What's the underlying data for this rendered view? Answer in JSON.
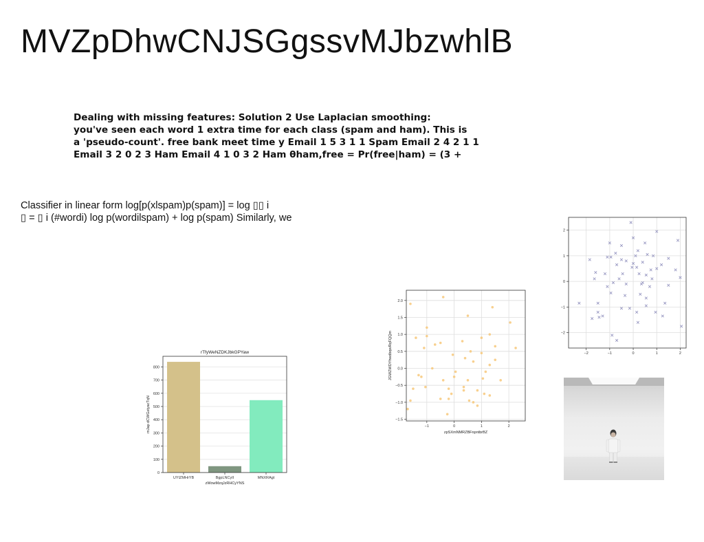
{
  "title": "MVZpDhwCNJSGgssvMJbzwhlB",
  "bold_text_lines": [
    "Dealing with missing features: Solution 2 Use Laplacian smoothing:",
    "you've seen each word 1 extra time for each class (spam and ham). This is",
    "a 'pseudo-count'. free bank meet time y Email 1 5 3 1 1 Spam Email 2 4 2 1 1",
    "Email 3 2 0 2 3 Ham Email 4 1 0 3 2 Ham θham,free = Pr(free|ham) = (3 +"
  ],
  "classifier_lines": [
    "Classifier in linear form log[p(xlspam)p(spam)] = log ▯▯ i",
    "▯ = ▯ i (#wordi) log p(wordilspam) + log p(spam) Similarly, we"
  ],
  "chart_data": [
    {
      "type": "bar",
      "title": "rTfyWeNZDKJbkGPYaw",
      "xlabel": "zWowMzqJzRHCyYNS",
      "ylabel": "mJap dCWGxtyacTqN",
      "categories": [
        "UYIZMHrYB",
        "BgpLNCyII",
        "MNXRAgt"
      ],
      "values": [
        838,
        48,
        548
      ],
      "colors": [
        "#d4c18a",
        "#7f9680",
        "#82ebbe"
      ],
      "ylim": [
        0,
        880
      ],
      "yticks": [
        0,
        100,
        200,
        300,
        400,
        500,
        600,
        700,
        800
      ],
      "grid": true
    },
    {
      "type": "scatter",
      "title": "",
      "xlabel": "zpSXmNMRZBFnpntbrBZ",
      "ylabel": "JGWZWDYhwdbqwRqFQQm",
      "xlim": [
        -1.75,
        2.6
      ],
      "ylim": [
        -1.55,
        2.3
      ],
      "xticks": [
        -1,
        0,
        1,
        2
      ],
      "yticks": [
        -1.5,
        -1.0,
        -0.5,
        0.0,
        0.5,
        1.0,
        1.5,
        2.0
      ],
      "marker": "circle",
      "color": "#f7c87a",
      "grid": true,
      "points": [
        [
          -1.6,
          1.9
        ],
        [
          -0.4,
          2.1
        ],
        [
          1.4,
          1.8
        ],
        [
          0.5,
          1.55
        ],
        [
          2.05,
          1.35
        ],
        [
          -1.0,
          1.2
        ],
        [
          -0.7,
          0.7
        ],
        [
          -1.0,
          0.95
        ],
        [
          -1.4,
          0.9
        ],
        [
          -0.5,
          0.75
        ],
        [
          0.3,
          0.8
        ],
        [
          1.0,
          0.9
        ],
        [
          1.3,
          1.0
        ],
        [
          2.25,
          0.6
        ],
        [
          1.5,
          0.65
        ],
        [
          -1.1,
          0.6
        ],
        [
          0.6,
          0.5
        ],
        [
          -0.05,
          0.4
        ],
        [
          1.0,
          0.45
        ],
        [
          0.7,
          0.2
        ],
        [
          0.4,
          0.3
        ],
        [
          1.3,
          0.1
        ],
        [
          1.5,
          0.25
        ],
        [
          -0.8,
          0.0
        ],
        [
          0.05,
          -0.1
        ],
        [
          1.15,
          -0.1
        ],
        [
          -1.3,
          -0.2
        ],
        [
          -1.2,
          -0.25
        ],
        [
          0.0,
          -0.25
        ],
        [
          -0.4,
          -0.35
        ],
        [
          0.5,
          -0.35
        ],
        [
          1.05,
          -0.3
        ],
        [
          1.7,
          -0.35
        ],
        [
          -1.05,
          -0.55
        ],
        [
          0.35,
          -0.55
        ],
        [
          0.85,
          -0.65
        ],
        [
          -1.5,
          -0.6
        ],
        [
          -0.2,
          -0.6
        ],
        [
          -0.1,
          -0.75
        ],
        [
          0.35,
          -0.65
        ],
        [
          1.3,
          -0.8
        ],
        [
          -0.5,
          -0.9
        ],
        [
          0.55,
          -0.95
        ],
        [
          -1.6,
          -0.95
        ],
        [
          -0.2,
          -0.9
        ],
        [
          0.85,
          -1.1
        ],
        [
          -1.7,
          -1.2
        ],
        [
          -0.25,
          -1.35
        ],
        [
          0.7,
          -1.0
        ],
        [
          1.1,
          -0.75
        ]
      ]
    },
    {
      "type": "scatter",
      "title": "",
      "xlabel": "",
      "ylabel": "",
      "xlim": [
        -2.75,
        2.25
      ],
      "ylim": [
        -2.6,
        2.5
      ],
      "xticks": [
        -2,
        -1,
        0,
        1,
        2
      ],
      "yticks": [
        -2,
        -1,
        0,
        1,
        2
      ],
      "marker": "x",
      "color": "#9898c2",
      "grid": true,
      "points": [
        [
          -0.1,
          2.3
        ],
        [
          1.0,
          1.95
        ],
        [
          0.0,
          1.7
        ],
        [
          1.9,
          1.6
        ],
        [
          0.5,
          1.5
        ],
        [
          -1.0,
          1.5
        ],
        [
          -0.5,
          1.4
        ],
        [
          -0.75,
          1.1
        ],
        [
          0.2,
          1.2
        ],
        [
          -1.1,
          0.95
        ],
        [
          0.1,
          1.0
        ],
        [
          0.6,
          1.05
        ],
        [
          0.85,
          1.0
        ],
        [
          -1.85,
          0.85
        ],
        [
          -0.95,
          0.95
        ],
        [
          -0.5,
          0.85
        ],
        [
          1.5,
          0.9
        ],
        [
          -0.3,
          0.8
        ],
        [
          0.0,
          0.7
        ],
        [
          0.4,
          0.75
        ],
        [
          1.2,
          0.65
        ],
        [
          -0.7,
          0.65
        ],
        [
          -1.6,
          0.35
        ],
        [
          -1.2,
          0.3
        ],
        [
          -0.45,
          0.3
        ],
        [
          0.15,
          0.55
        ],
        [
          0.75,
          0.45
        ],
        [
          1.0,
          0.5
        ],
        [
          1.8,
          0.45
        ],
        [
          -0.6,
          0.1
        ],
        [
          0.25,
          0.3
        ],
        [
          0.55,
          0.25
        ],
        [
          -2.3,
          -0.85
        ],
        [
          -1.5,
          -0.85
        ],
        [
          -1.1,
          -0.2
        ],
        [
          -0.85,
          -0.05
        ],
        [
          -0.3,
          -0.1
        ],
        [
          0.35,
          -0.1
        ],
        [
          1.5,
          -0.15
        ],
        [
          0.7,
          -0.2
        ],
        [
          2.0,
          0.15
        ],
        [
          -1.65,
          0.1
        ],
        [
          -0.95,
          -0.45
        ],
        [
          -0.35,
          -0.55
        ],
        [
          0.3,
          -0.5
        ],
        [
          0.55,
          -0.65
        ],
        [
          -1.5,
          -1.2
        ],
        [
          -1.3,
          -1.35
        ],
        [
          -0.15,
          -1.05
        ],
        [
          0.15,
          -1.2
        ],
        [
          0.95,
          -1.2
        ],
        [
          1.35,
          -0.85
        ],
        [
          -0.5,
          -1.05
        ],
        [
          0.55,
          -0.95
        ],
        [
          -1.45,
          -1.4
        ],
        [
          1.25,
          -1.35
        ],
        [
          2.05,
          -1.75
        ],
        [
          -0.9,
          -2.1
        ],
        [
          -0.7,
          -2.3
        ],
        [
          0.2,
          -1.6
        ],
        [
          -1.75,
          -1.45
        ],
        [
          0.4,
          -0.05
        ],
        [
          -0.05,
          0.55
        ],
        [
          0.8,
          0.1
        ]
      ]
    }
  ]
}
